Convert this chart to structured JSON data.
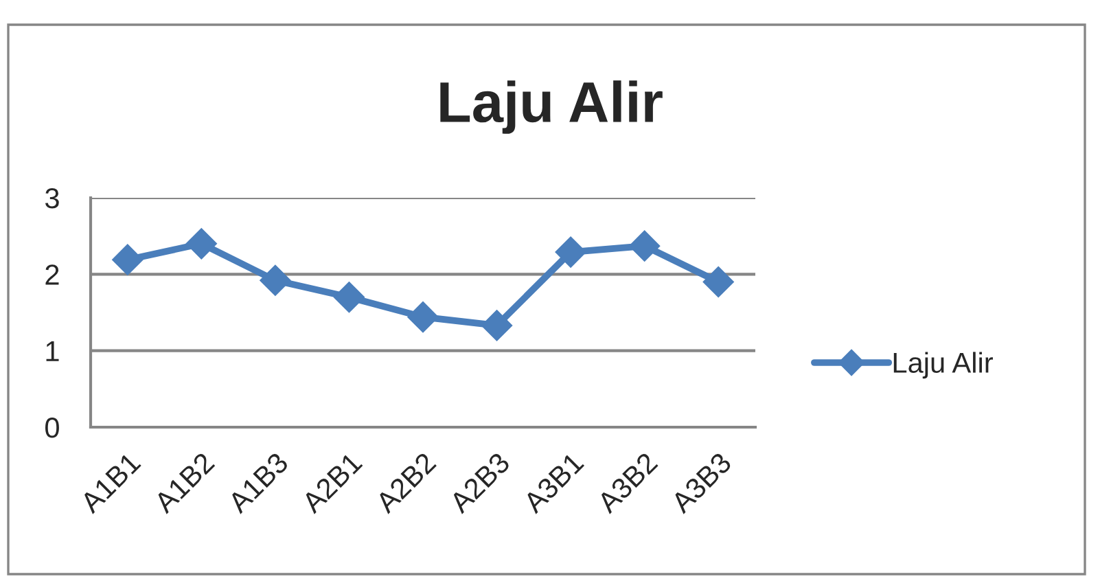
{
  "chart_data": {
    "type": "line",
    "title": "Laju Alir",
    "categories": [
      "A1B1",
      "A1B2",
      "A1B3",
      "A2B1",
      "A2B2",
      "A2B3",
      "A3B1",
      "A3B2",
      "A3B3"
    ],
    "series": [
      {
        "name": "Laju Alir",
        "color": "#4a7ebb",
        "values": [
          2.19,
          2.4,
          1.92,
          1.7,
          1.44,
          1.33,
          2.29,
          2.37,
          1.9
        ]
      }
    ],
    "ylim": [
      0,
      3
    ],
    "yticks": [
      0,
      1,
      2,
      3
    ],
    "grid": "y",
    "legend": "right",
    "marker": "diamond",
    "line_style": "solid"
  }
}
